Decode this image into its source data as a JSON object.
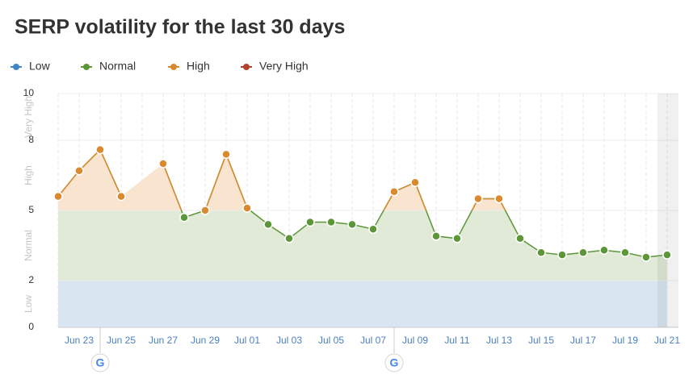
{
  "chart_data": {
    "type": "line",
    "title": "SERP volatility for the last 30 days",
    "categories": [
      null,
      "Jun 23",
      null,
      "Jun 25",
      null,
      "Jun 27",
      null,
      "Jun 29",
      null,
      "Jul 01",
      null,
      "Jul 03",
      null,
      "Jul 05",
      null,
      "Jul 07",
      null,
      "Jul 09",
      null,
      "Jul 11",
      null,
      "Jul 13",
      null,
      "Jul 15",
      null,
      "Jul 17",
      null,
      "Jul 19",
      null,
      "Jul 21"
    ],
    "values": [
      5.6,
      6.7,
      7.6,
      5.6,
      null,
      7.0,
      4.7,
      5.0,
      7.4,
      5.1,
      4.4,
      3.8,
      4.5,
      4.5,
      4.4,
      4.2,
      5.8,
      6.2,
      3.9,
      3.8,
      5.5,
      5.5,
      3.8,
      3.2,
      3.1,
      3.2,
      3.3,
      3.2,
      3.0,
      3.1
    ],
    "ylim": [
      0,
      10
    ],
    "yticks": [
      0,
      2,
      5,
      8,
      10
    ],
    "bands": [
      {
        "name": "Low",
        "color": "#3f86c9",
        "fill": "#d9e6f1"
      },
      {
        "name": "Normal",
        "color": "#5c9638",
        "fill": "#e0ead6"
      },
      {
        "name": "High",
        "color": "#d98a2f",
        "fill": "#f8e4cf"
      },
      {
        "name": "Very High",
        "color": "#b4432e",
        "fill": "#f4d8d2"
      }
    ]
  }
}
